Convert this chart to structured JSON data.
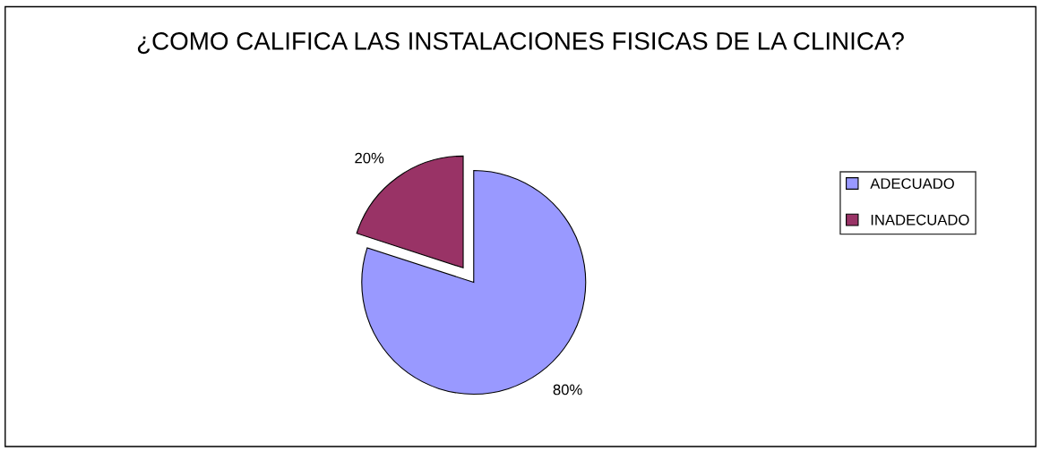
{
  "chart_data": {
    "type": "pie",
    "title": "¿COMO CALIFICA LAS INSTALACIONES FISICAS DE LA CLINICA?",
    "categories": [
      "ADECUADO",
      "INADECUADO"
    ],
    "values": [
      80,
      20
    ],
    "colors": [
      "#9999ff",
      "#993366"
    ],
    "value_labels": [
      "80%",
      "20%"
    ],
    "legend": "right"
  }
}
